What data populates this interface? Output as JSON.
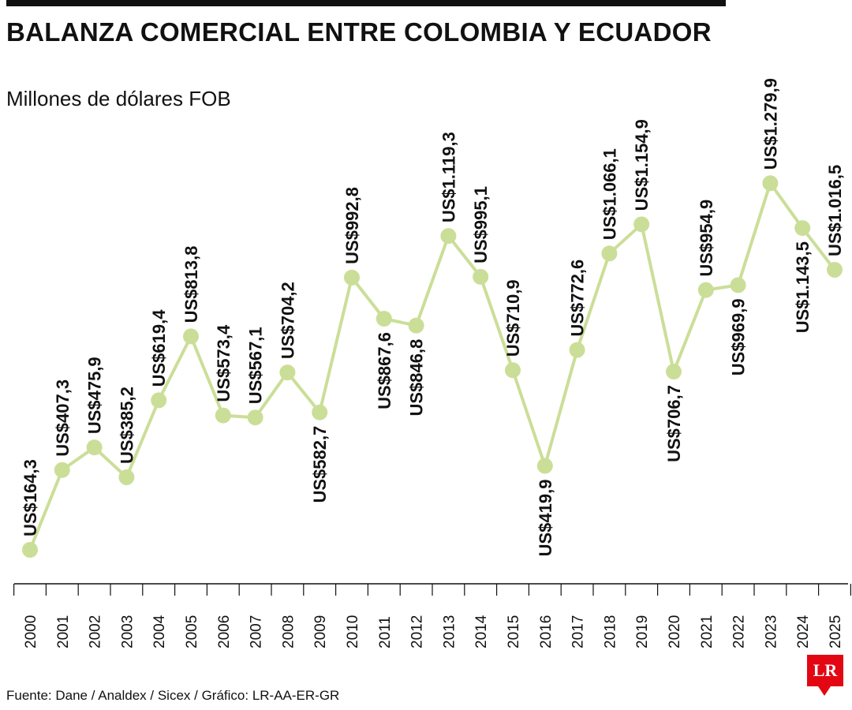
{
  "title": "BALANZA COMERCIAL ENTRE COLOMBIA Y ECUADOR",
  "subtitle": "Millones de dólares FOB",
  "source": "Fuente: Dane / Analdex / Sicex / Gráfico: LR-AA-ER-GR",
  "logo": "LR",
  "colors": {
    "line": "#cbde98",
    "marker": "#cbde98",
    "text": "#111111",
    "brand": "#e30613"
  },
  "chart_data": {
    "type": "line",
    "title": "BALANZA COMERCIAL ENTRE COLOMBIA Y ECUADOR",
    "ylabel": "Millones de dólares FOB",
    "categories": [
      "2000",
      "2001",
      "2002",
      "2003",
      "2004",
      "2005",
      "2006",
      "2007",
      "2008",
      "2009",
      "2010",
      "2011",
      "2012",
      "2013",
      "2014",
      "2015",
      "2016",
      "2017",
      "2018",
      "2019",
      "2020",
      "2021",
      "2022",
      "2023",
      "2024",
      "2025"
    ],
    "values": [
      164.3,
      407.3,
      475.9,
      385.2,
      619.4,
      813.8,
      573.4,
      567.1,
      704.2,
      582.7,
      992.8,
      867.6,
      846.8,
      1119.3,
      995.1,
      710.9,
      419.9,
      772.6,
      1066.1,
      1154.9,
      706.7,
      954.9,
      969.9,
      1279.9,
      1143.5,
      1016.5
    ],
    "labels": [
      "US$164,3",
      "US$407,3",
      "US$475,9",
      "US$385,2",
      "US$619,4",
      "US$813,8",
      "US$573,4",
      "US$567,1",
      "US$704,2",
      "US$582,7",
      "US$992,8",
      "US$867,6",
      "US$846,8",
      "US$1.119,3",
      "US$995,1",
      "US$710,9",
      "US$419,9",
      "US$772,6",
      "US$1.066,1",
      "US$1.154,9",
      "US$706,7",
      "US$954,9",
      "US$969,9",
      "US$1.279,9",
      "US$1.143,5",
      "US$1.016,5"
    ],
    "label_position": [
      "above",
      "above",
      "above",
      "above",
      "above",
      "above",
      "above",
      "above",
      "above",
      "below",
      "above",
      "below",
      "below",
      "above",
      "above",
      "above",
      "below",
      "above",
      "above",
      "above",
      "below",
      "above",
      "below",
      "above",
      "below",
      "above"
    ],
    "grid": false,
    "legend": "none"
  }
}
